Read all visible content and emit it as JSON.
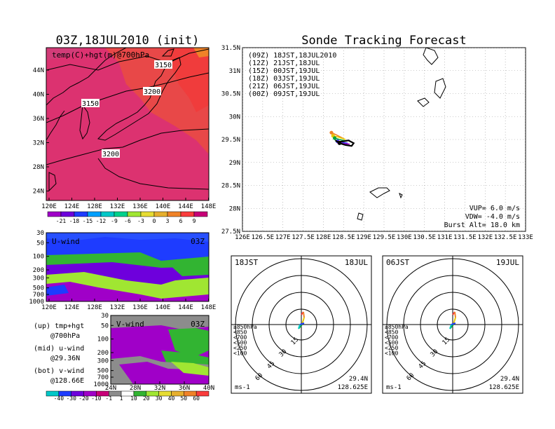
{
  "left_title": "03Z,18JUL2010 (init)",
  "right_title": "Sonde Tracking Forecast",
  "top_map": {
    "label": "temp(C)+hgt(m)@700hPa",
    "contours": [
      "3150",
      "3200",
      "3150",
      "3200"
    ],
    "lat_ticks": [
      "44N",
      "40N",
      "36N",
      "32N",
      "28N",
      "24N"
    ],
    "lon_ticks": [
      "120E",
      "124E",
      "128E",
      "132E",
      "136E",
      "140E",
      "144E",
      "148E"
    ],
    "colorbar": {
      "labels": [
        "-21",
        "-18",
        "-15",
        "-12",
        "-9",
        "-6",
        "-3",
        "0",
        "3",
        "6",
        "9"
      ],
      "colors": [
        "#a000c8",
        "#6e00dc",
        "#1e3cff",
        "#00a0ff",
        "#00c8c8",
        "#00d28c",
        "#a0e632",
        "#e6dc32",
        "#e6af2d",
        "#f08228",
        "#fa3c3c",
        "#c80078"
      ]
    }
  },
  "u_wind": {
    "label": "U-wind",
    "time": "03Z",
    "p_ticks": [
      "30",
      "50",
      "100",
      "200",
      "300",
      "500",
      "700",
      "1000"
    ],
    "lon_ticks": [
      "120E",
      "124E",
      "128E",
      "132E",
      "136E",
      "140E",
      "144E",
      "148E"
    ]
  },
  "v_wind": {
    "label": "V-wind",
    "time": "03Z",
    "p_ticks": [
      "30",
      "50",
      "100",
      "200",
      "300",
      "500",
      "700",
      "1000"
    ],
    "lat_ticks": [
      "24N",
      "28N",
      "32N",
      "36N",
      "40N"
    ],
    "colorbar": {
      "labels": [
        "-40",
        "-30",
        "-20",
        "-10",
        "-1",
        "1",
        "10",
        "20",
        "30",
        "40",
        "50",
        "60"
      ],
      "colors": [
        "#00c8c8",
        "#1e3cff",
        "#6e00dc",
        "#a000c8",
        "#c80078",
        "#8c8c8c",
        "#ffffff",
        "#32b432",
        "#a0e632",
        "#e6dc32",
        "#e6af2d",
        "#f08228",
        "#fa3c3c"
      ]
    }
  },
  "notes": [
    {
      "a": "(up) tmp+hgt",
      "b": "@700hPa"
    },
    {
      "a": "(mid) u-wind",
      "b": "@29.36N"
    },
    {
      "a": "(bot) v-wind",
      "b": "@128.66E"
    }
  ],
  "track_map": {
    "legend": [
      {
        "label": "(09Z) 18JST,18JUL2010",
        "color": "#000000"
      },
      {
        "label": "(12Z) 21JST,18JUL",
        "color": "#a000c8"
      },
      {
        "label": "(15Z) 00JST,19JUL",
        "color": "#1e3cff"
      },
      {
        "label": "(18Z) 03JST,19JUL",
        "color": "#00a03c"
      },
      {
        "label": "(21Z) 06JST,19JUL",
        "color": "#e6c800"
      },
      {
        "label": "(00Z) 09JST,19JUL",
        "color": "#f08228"
      }
    ],
    "lat_ticks": [
      "31.5N",
      "31N",
      "30.5N",
      "30N",
      "29.5N",
      "29N",
      "28.5N",
      "28N",
      "27.5N"
    ],
    "lon_ticks": [
      "126E",
      "126.5E",
      "127E",
      "127.5E",
      "128E",
      "128.5E",
      "129E",
      "129.5E",
      "130E",
      "130.5E",
      "131E",
      "131.5E",
      "132E",
      "132.5E",
      "133E"
    ],
    "params": [
      "VUP=  6.0  m/s",
      "VDW= -4.0  m/s",
      "Burst Alt= 18.0  km"
    ]
  },
  "polar_left": {
    "time": "18JST",
    "date": "18JUL",
    "unit": "ms-1",
    "lat": "29.4N",
    "lon": "128.625E",
    "rings": [
      "15",
      "30",
      "45",
      "60"
    ],
    "levels": [
      "≥850hPa",
      "<850",
      "<700",
      "<500",
      "<250",
      "<100"
    ]
  },
  "polar_right": {
    "time": "06JST",
    "date": "19JUL",
    "unit": "ms-1",
    "lat": "29.4N",
    "lon": "128.625E",
    "rings": [
      "15",
      "30",
      "45",
      "60"
    ],
    "levels": [
      "≥850hPa",
      "<850",
      "<700",
      "<500",
      "<250",
      "<100"
    ]
  },
  "level_colors": [
    "#fa3c3c",
    "#f08228",
    "#e6c800",
    "#00a03c",
    "#00c8c8",
    "#1e3cff"
  ],
  "chart_data": {
    "type": "line",
    "title": "Sonde Tracking Forecast",
    "xlim": [
      126,
      133
    ],
    "ylim": [
      27.5,
      31.5
    ],
    "series": [
      {
        "name": "(09Z) 18JST,18JUL2010",
        "x": [
          128.3,
          128.4,
          128.55,
          128.7,
          128.75,
          128.62,
          128.5,
          128.35
        ],
        "y": [
          29.48,
          29.42,
          29.38,
          29.36,
          29.42,
          29.48,
          29.46,
          29.45
        ]
      },
      {
        "name": "(12Z) 21JST,18JUL",
        "x": [
          128.3,
          128.38,
          128.5,
          128.65
        ],
        "y": [
          29.48,
          29.44,
          29.41,
          29.4
        ]
      },
      {
        "name": "(15Z) 00JST,19JUL",
        "x": [
          128.3,
          128.35,
          128.48,
          128.6
        ],
        "y": [
          29.48,
          29.46,
          29.43,
          29.42
        ]
      },
      {
        "name": "(18Z) 03JST,19JUL",
        "x": [
          128.3,
          128.28,
          128.4,
          128.55
        ],
        "y": [
          29.48,
          29.53,
          29.5,
          29.47
        ]
      },
      {
        "name": "(21Z) 06JST,19JUL",
        "x": [
          128.3,
          128.24,
          128.38,
          128.55
        ],
        "y": [
          29.48,
          29.58,
          29.55,
          29.5
        ]
      },
      {
        "name": "(00Z) 09JST,19JUL",
        "x": [
          128.3,
          128.2,
          128.32,
          128.5
        ],
        "y": [
          29.48,
          29.65,
          29.6,
          29.52
        ]
      }
    ]
  }
}
